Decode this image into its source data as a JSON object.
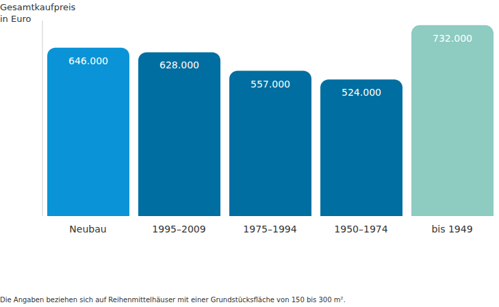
{
  "chart_data": {
    "type": "bar",
    "title": "Gesamtkaufpreis\nin Euro",
    "categories": [
      "Neubau",
      "1995–2009",
      "1975–1994",
      "1950–1974",
      "bis 1949"
    ],
    "values": [
      646000,
      628000,
      557000,
      524000,
      732000
    ],
    "value_labels": [
      "646.000",
      "628.000",
      "557.000",
      "524.000",
      "732.000"
    ],
    "colors": [
      "#0a93d6",
      "#006ea0",
      "#006ea0",
      "#006ea0",
      "#8ecbc0"
    ],
    "ylim": [
      0,
      750000
    ],
    "yticks": [],
    "data_labels": true,
    "tick_labels": "x",
    "grid": false,
    "footnote": "Die Angaben beziehen sich auf Reihenmittelhäuser mit einer Grundstücksfläche von 150 bis 300 m²."
  }
}
